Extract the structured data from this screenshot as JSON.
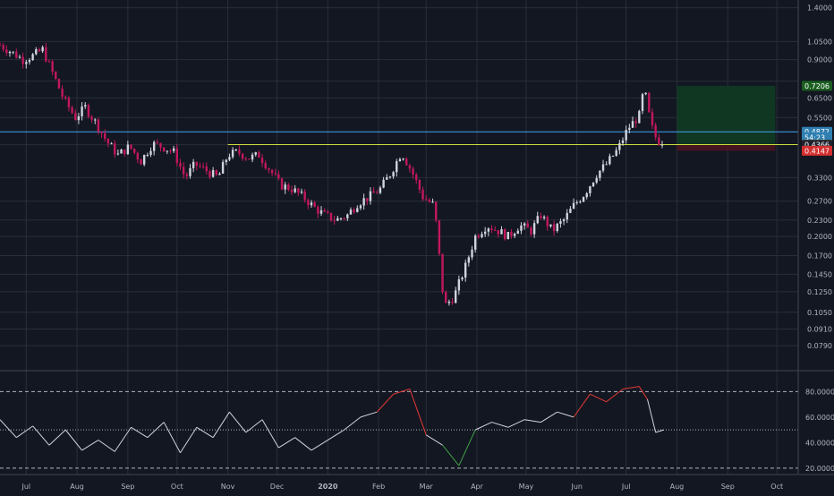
{
  "theme": {
    "background": "#131722",
    "grid": "#2a2e39",
    "axis_text": "#b2b5be",
    "candle_up": "#d1d4dc",
    "candle_down": "#c2185b",
    "hline_blue": "#42a5f5",
    "hline_yellow": "#cddc39",
    "target_zone": "#0f3b22",
    "stop_zone": "#4a1520",
    "rsi_line": "#d1d4dc",
    "rsi_overbought": "#e53935",
    "rsi_oversold": "#43a047"
  },
  "chart_data": [
    {
      "type": "candlestick",
      "scale": "log",
      "ylim": [
        0.07,
        1.45
      ],
      "y_ticks": [
        "1.4000",
        "1.0500",
        "0.9000",
        "0.7500",
        "0.6500",
        "0.5500",
        "0.4366",
        "0.3300",
        "0.2700",
        "0.2300",
        "0.2000",
        "0.1700",
        "0.1450",
        "0.1250",
        "0.1050",
        "0.0910",
        "0.0790"
      ],
      "y_tick_values": [
        1.4,
        1.05,
        0.9,
        0.75,
        0.65,
        0.55,
        0.4366,
        0.33,
        0.27,
        0.23,
        0.2,
        0.17,
        0.145,
        0.125,
        0.105,
        0.091,
        0.079
      ],
      "x_labels": [
        "Jul",
        "Aug",
        "Sep",
        "Oct",
        "Nov",
        "Dec",
        "2020",
        "Feb",
        "Mar",
        "Apr",
        "May",
        "Jun",
        "Jul",
        "Aug",
        "Sep",
        "Oct"
      ],
      "x_label_dates": [
        "2019-07-01",
        "2019-08-01",
        "2019-09-01",
        "2019-10-01",
        "2019-11-01",
        "2019-12-01",
        "2020-01-01",
        "2020-02-01",
        "2020-03-01",
        "2020-04-01",
        "2020-05-01",
        "2020-06-01",
        "2020-07-01",
        "2020-08-01",
        "2020-09-01",
        "2020-10-01"
      ],
      "x_range": [
        "2019-06-15",
        "2020-10-14"
      ],
      "close_path": [
        [
          "2019-06-15",
          1.02
        ],
        [
          "2019-06-22",
          0.96
        ],
        [
          "2019-06-29",
          0.9
        ],
        [
          "2019-07-05",
          0.93
        ],
        [
          "2019-07-11",
          0.98
        ],
        [
          "2019-07-18",
          0.78
        ],
        [
          "2019-07-24",
          0.64
        ],
        [
          "2019-07-31",
          0.55
        ],
        [
          "2019-08-06",
          0.6
        ],
        [
          "2019-08-13",
          0.52
        ],
        [
          "2019-08-19",
          0.45
        ],
        [
          "2019-08-26",
          0.4
        ],
        [
          "2019-09-02",
          0.43
        ],
        [
          "2019-09-09",
          0.38
        ],
        [
          "2019-09-16",
          0.44
        ],
        [
          "2019-09-22",
          0.43
        ],
        [
          "2019-09-29",
          0.41
        ],
        [
          "2019-10-06",
          0.33
        ],
        [
          "2019-10-12",
          0.37
        ],
        [
          "2019-10-19",
          0.35
        ],
        [
          "2019-10-26",
          0.33
        ],
        [
          "2019-11-01",
          0.4
        ],
        [
          "2019-11-07",
          0.41
        ],
        [
          "2019-11-14",
          0.39
        ],
        [
          "2019-11-20",
          0.4
        ],
        [
          "2019-11-27",
          0.35
        ],
        [
          "2019-12-03",
          0.31
        ],
        [
          "2019-12-10",
          0.3
        ],
        [
          "2019-12-17",
          0.28
        ],
        [
          "2019-12-24",
          0.255
        ],
        [
          "2019-12-30",
          0.24
        ],
        [
          "2020-01-06",
          0.23
        ],
        [
          "2020-01-13",
          0.24
        ],
        [
          "2020-01-19",
          0.265
        ],
        [
          "2020-01-26",
          0.28
        ],
        [
          "2020-02-02",
          0.3
        ],
        [
          "2020-02-08",
          0.34
        ],
        [
          "2020-02-15",
          0.41
        ],
        [
          "2020-02-22",
          0.34
        ],
        [
          "2020-02-28",
          0.28
        ],
        [
          "2020-03-06",
          0.26
        ],
        [
          "2020-03-12",
          0.11
        ],
        [
          "2020-03-18",
          0.12
        ],
        [
          "2020-03-25",
          0.155
        ],
        [
          "2020-03-31",
          0.2
        ],
        [
          "2020-04-07",
          0.22
        ],
        [
          "2020-04-14",
          0.21
        ],
        [
          "2020-04-20",
          0.2
        ],
        [
          "2020-04-27",
          0.22
        ],
        [
          "2020-05-04",
          0.21
        ],
        [
          "2020-05-10",
          0.24
        ],
        [
          "2020-05-17",
          0.21
        ],
        [
          "2020-05-24",
          0.23
        ],
        [
          "2020-05-30",
          0.26
        ],
        [
          "2020-06-06",
          0.29
        ],
        [
          "2020-06-13",
          0.34
        ],
        [
          "2020-06-19",
          0.37
        ],
        [
          "2020-06-26",
          0.42
        ],
        [
          "2020-07-02",
          0.5
        ],
        [
          "2020-07-09",
          0.56
        ],
        [
          "2020-07-12",
          0.71
        ],
        [
          "2020-07-16",
          0.52
        ],
        [
          "2020-07-20",
          0.45
        ],
        [
          "2020-07-24",
          0.45
        ]
      ],
      "price_labels": [
        {
          "text": "0.7206",
          "value": 0.7206,
          "color": "#1b5e20"
        },
        {
          "text": "0.4872",
          "value": 0.4872,
          "color": "#2f7fb0"
        },
        {
          "text": "54:23",
          "value": 0.465,
          "color": "#2f7fb0"
        },
        {
          "text": "0.4371",
          "value": 0.4371,
          "color": "#ffeb3b"
        },
        {
          "text": "0.4366",
          "value": 0.4366,
          "color": "#1e222d"
        },
        {
          "text": "0.4147",
          "value": 0.4147,
          "color": "#d32f2f"
        }
      ],
      "horizontal_lines": [
        {
          "value": 0.4872,
          "color": "blue"
        },
        {
          "value": 0.4371,
          "color": "yellow",
          "from": "2019-11-01"
        }
      ],
      "position": {
        "entry": 0.4371,
        "target": 0.7206,
        "stop": 0.4147,
        "from": "2020-08-01",
        "to": "2020-09-30"
      }
    },
    {
      "type": "line",
      "name": "RSI",
      "ylim": [
        15,
        95
      ],
      "y_ticks": [
        "80.0000",
        "60.0000",
        "40.0000",
        "20.0000"
      ],
      "y_tick_values": [
        80,
        60,
        40,
        20
      ],
      "levels": [
        80,
        50,
        20
      ],
      "x": [
        "2019-06-15",
        "2019-06-25",
        "2019-07-05",
        "2019-07-15",
        "2019-07-25",
        "2019-08-04",
        "2019-08-14",
        "2019-08-24",
        "2019-09-03",
        "2019-09-13",
        "2019-09-23",
        "2019-10-03",
        "2019-10-13",
        "2019-10-23",
        "2019-11-02",
        "2019-11-12",
        "2019-11-22",
        "2019-12-02",
        "2019-12-12",
        "2019-12-22",
        "2020-01-01",
        "2020-01-11",
        "2020-01-21",
        "2020-01-31",
        "2020-02-10",
        "2020-02-20",
        "2020-03-01",
        "2020-03-11",
        "2020-03-21",
        "2020-03-31",
        "2020-04-10",
        "2020-04-20",
        "2020-04-30",
        "2020-05-10",
        "2020-05-20",
        "2020-05-30",
        "2020-06-09",
        "2020-06-19",
        "2020-06-29",
        "2020-07-09",
        "2020-07-14",
        "2020-07-19",
        "2020-07-24"
      ],
      "values": [
        58,
        44,
        53,
        38,
        50,
        34,
        42,
        33,
        52,
        44,
        56,
        32,
        52,
        44,
        64,
        48,
        58,
        36,
        44,
        34,
        42,
        50,
        60,
        64,
        78,
        82,
        46,
        38,
        22,
        50,
        56,
        52,
        58,
        56,
        64,
        60,
        78,
        72,
        82,
        84,
        74,
        48,
        50
      ]
    }
  ]
}
